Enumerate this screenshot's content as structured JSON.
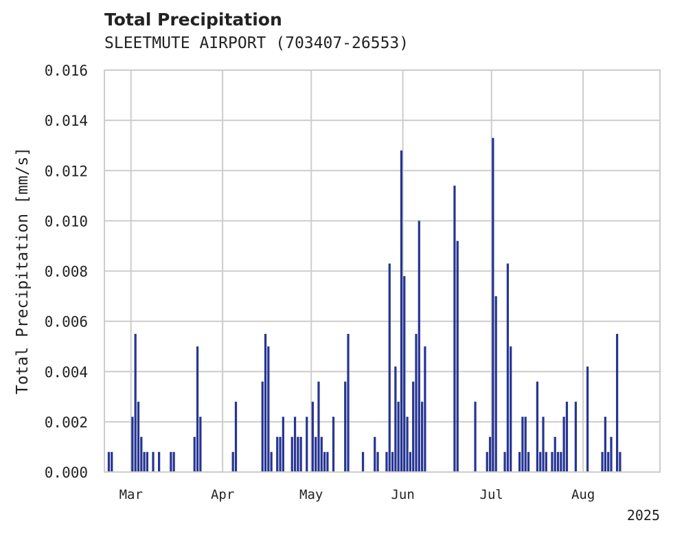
{
  "chart_data": {
    "type": "bar",
    "title": "Total Precipitation",
    "subtitle": "SLEETMUTE AIRPORT (703407-26553)",
    "xlabel": "",
    "ylabel": "Total Precipitation [mm/s]",
    "ylim": [
      0,
      0.016
    ],
    "yticks": [
      "0.000",
      "0.002",
      "0.004",
      "0.006",
      "0.008",
      "0.010",
      "0.012",
      "0.014",
      "0.016"
    ],
    "xlim": [
      "2025-02-20",
      "2025-08-27"
    ],
    "xticks": [
      {
        "date": "2025-03-01",
        "label": "Mar"
      },
      {
        "date": "2025-04-01",
        "label": "Apr"
      },
      {
        "date": "2025-05-01",
        "label": "May"
      },
      {
        "date": "2025-06-01",
        "label": "Jun"
      },
      {
        "date": "2025-07-01",
        "label": "Jul"
      },
      {
        "date": "2025-08-01",
        "label": "Aug"
      }
    ],
    "x_offset_label": "2025",
    "grid": true,
    "bar_color": "#263593",
    "x": [
      "2025-02-21",
      "2025-02-22",
      "2025-03-01",
      "2025-03-02",
      "2025-03-03",
      "2025-03-04",
      "2025-03-05",
      "2025-03-06",
      "2025-03-08",
      "2025-03-10",
      "2025-03-14",
      "2025-03-15",
      "2025-03-22",
      "2025-03-23",
      "2025-03-24",
      "2025-04-04",
      "2025-04-05",
      "2025-04-14",
      "2025-04-15",
      "2025-04-16",
      "2025-04-17",
      "2025-04-19",
      "2025-04-20",
      "2025-04-21",
      "2025-04-24",
      "2025-04-25",
      "2025-04-26",
      "2025-04-27",
      "2025-04-29",
      "2025-05-01",
      "2025-05-02",
      "2025-05-03",
      "2025-05-04",
      "2025-05-05",
      "2025-05-06",
      "2025-05-08",
      "2025-05-12",
      "2025-05-13",
      "2025-05-18",
      "2025-05-22",
      "2025-05-23",
      "2025-05-26",
      "2025-05-27",
      "2025-05-28",
      "2025-05-29",
      "2025-05-30",
      "2025-05-31",
      "2025-06-01",
      "2025-06-02",
      "2025-06-03",
      "2025-06-04",
      "2025-06-05",
      "2025-06-06",
      "2025-06-07",
      "2025-06-08",
      "2025-06-18",
      "2025-06-19",
      "2025-06-25",
      "2025-06-29",
      "2025-06-30",
      "2025-07-01",
      "2025-07-02",
      "2025-07-05",
      "2025-07-06",
      "2025-07-07",
      "2025-07-10",
      "2025-07-11",
      "2025-07-12",
      "2025-07-13",
      "2025-07-16",
      "2025-07-17",
      "2025-07-18",
      "2025-07-19",
      "2025-07-21",
      "2025-07-22",
      "2025-07-23",
      "2025-07-24",
      "2025-07-25",
      "2025-07-26",
      "2025-07-29",
      "2025-08-02",
      "2025-08-07",
      "2025-08-08",
      "2025-08-09",
      "2025-08-10",
      "2025-08-12",
      "2025-08-13"
    ],
    "values": [
      0.0008,
      0.0008,
      0.0022,
      0.0055,
      0.0028,
      0.0014,
      0.0008,
      0.0008,
      0.0008,
      0.0008,
      0.0008,
      0.0008,
      0.0014,
      0.005,
      0.0022,
      0.0008,
      0.0028,
      0.0036,
      0.0055,
      0.005,
      0.0008,
      0.0014,
      0.0014,
      0.0022,
      0.0014,
      0.0022,
      0.0014,
      0.0014,
      0.0022,
      0.0028,
      0.0014,
      0.0036,
      0.0014,
      0.0008,
      0.0008,
      0.0022,
      0.0036,
      0.0055,
      0.0008,
      0.0014,
      0.0008,
      0.0008,
      0.0083,
      0.0008,
      0.0042,
      0.0028,
      0.0128,
      0.0078,
      0.0022,
      0.0008,
      0.0036,
      0.0055,
      0.01,
      0.0028,
      0.005,
      0.0114,
      0.0092,
      0.0028,
      0.0008,
      0.0014,
      0.0133,
      0.007,
      0.0008,
      0.0083,
      0.005,
      0.0008,
      0.0022,
      0.0022,
      0.0008,
      0.0036,
      0.0008,
      0.0022,
      0.0008,
      0.0008,
      0.0014,
      0.0008,
      0.0008,
      0.0022,
      0.0028,
      0.0028,
      0.0042,
      0.0008,
      0.0022,
      0.0008,
      0.0014,
      0.0055,
      0.0008
    ]
  }
}
